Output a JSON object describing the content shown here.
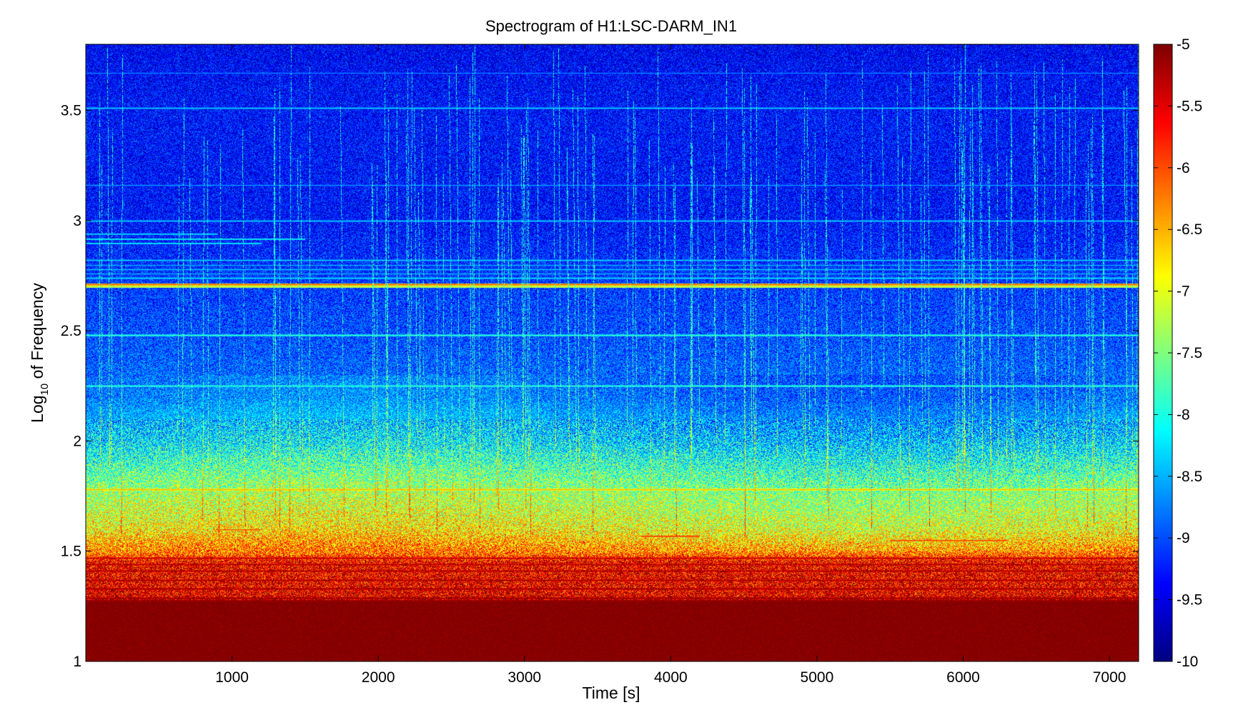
{
  "chart_data": {
    "type": "heatmap",
    "title": "Spectrogram of H1:LSC-DARM_IN1",
    "xlabel": "Time [s]",
    "ylabel": {
      "main": "Log",
      "sub": "10",
      "rest": " of Frequency"
    },
    "xlim": [
      0,
      7200
    ],
    "ylim": [
      1,
      3.8
    ],
    "x_ticks": [
      1000,
      2000,
      3000,
      4000,
      5000,
      6000,
      7000
    ],
    "y_ticks": [
      1,
      1.5,
      2,
      2.5,
      3,
      3.5
    ],
    "y_tick_labels": [
      "1",
      "1.5",
      "2",
      "2.5",
      "3",
      "3.5"
    ],
    "colorbar": {
      "range": [
        -10,
        -5
      ],
      "ticks": [
        -5,
        -5.5,
        -6,
        -6.5,
        -7,
        -7.5,
        -8,
        -8.5,
        -9,
        -9.5,
        -10
      ],
      "tick_labels": [
        "-5",
        "-5.5",
        "-6",
        "-6.5",
        "-7",
        "-7.5",
        "-8",
        "-8.5",
        "-9",
        "-9.5",
        "-10"
      ],
      "colormap": "jet"
    },
    "background_profile": [
      {
        "logf": 1.0,
        "value": -5.0
      },
      {
        "logf": 1.27,
        "value": -5.0
      },
      {
        "logf": 1.3,
        "value": -5.5
      },
      {
        "logf": 1.45,
        "value": -5.6
      },
      {
        "logf": 1.5,
        "value": -6.3
      },
      {
        "logf": 1.6,
        "value": -6.9
      },
      {
        "logf": 1.75,
        "value": -7.3
      },
      {
        "logf": 1.85,
        "value": -7.7
      },
      {
        "logf": 2.0,
        "value": -8.3
      },
      {
        "logf": 2.2,
        "value": -8.8
      },
      {
        "logf": 2.5,
        "value": -9.0
      },
      {
        "logf": 2.72,
        "value": -9.1
      },
      {
        "logf": 3.0,
        "value": -9.3
      },
      {
        "logf": 3.5,
        "value": -9.3
      },
      {
        "logf": 3.8,
        "value": -9.4
      }
    ],
    "lines": [
      {
        "logf": 3.51,
        "value": -8.3
      },
      {
        "logf": 3.67,
        "value": -8.7
      },
      {
        "logf": 3.16,
        "value": -8.6
      },
      {
        "logf": 3.0,
        "value": -8.3
      },
      {
        "logf": 2.82,
        "value": -8.3
      },
      {
        "logf": 2.8,
        "value": -8.5
      },
      {
        "logf": 2.78,
        "value": -8.4
      },
      {
        "logf": 2.76,
        "value": -8.5
      },
      {
        "logf": 2.74,
        "value": -8.2
      },
      {
        "logf": 2.71,
        "value": -6.0
      },
      {
        "logf": 2.7,
        "value": -6.8
      },
      {
        "logf": 2.48,
        "value": -7.8
      },
      {
        "logf": 2.25,
        "value": -7.8
      },
      {
        "logf": 1.78,
        "value": -6.5
      },
      {
        "logf": 1.47,
        "value": -5.3
      },
      {
        "logf": 1.44,
        "value": -5.3
      },
      {
        "logf": 1.41,
        "value": -5.2
      },
      {
        "logf": 1.37,
        "value": -5.2
      },
      {
        "logf": 1.33,
        "value": -5.1
      },
      {
        "logf": 1.29,
        "value": -5.1
      }
    ],
    "partial_lines": [
      {
        "logf": 2.92,
        "t_start": 0,
        "t_end": 1500,
        "value": -8.0
      },
      {
        "logf": 2.9,
        "t_start": 0,
        "t_end": 1200,
        "value": -8.1
      },
      {
        "logf": 2.94,
        "t_start": 0,
        "t_end": 900,
        "value": -8.2
      },
      {
        "logf": 1.6,
        "t_start": 900,
        "t_end": 1200,
        "value": -6.0
      },
      {
        "logf": 1.57,
        "t_start": 3800,
        "t_end": 4200,
        "value": -5.8
      },
      {
        "logf": 1.55,
        "t_start": 5500,
        "t_end": 6300,
        "value": -5.9
      }
    ]
  }
}
